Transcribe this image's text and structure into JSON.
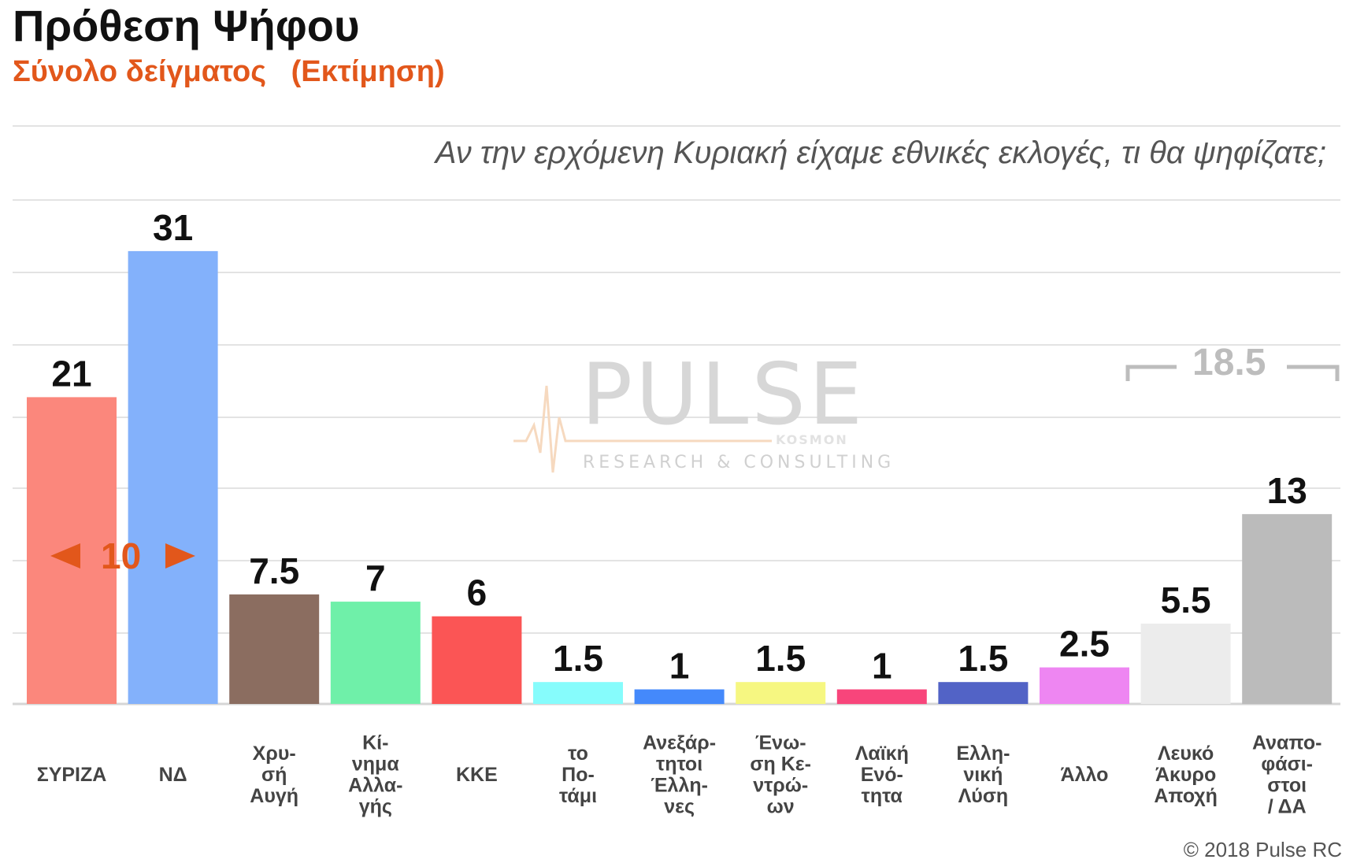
{
  "title": "Πρόθεση Ψήφου",
  "subtitle": "Σύνολο δείγματος   (Εκτίμηση)",
  "question": "Αν την ερχόμενη Κυριακή είχαμε εθνικές εκλογές, τι θα ψηφίζατε;",
  "copyright": "© 2018 Pulse RC",
  "watermark": {
    "brand": "PULSE",
    "tagline": "RESEARCH & CONSULTING",
    "partner": "KOSMON"
  },
  "annotations": {
    "gap_value": "10",
    "bracket_value": "18.5"
  },
  "colors": {
    "accent": "#e2571b",
    "grid": "#e3e3e3",
    "bracket": "#bdbdbd"
  },
  "chart_data": {
    "type": "bar",
    "title": "Πρόθεση Ψήφου",
    "subtitle": "Σύνολο δείγματος   (Εκτίμηση)",
    "categories": [
      [
        "ΣΥΡΙΖΑ"
      ],
      [
        "ΝΔ"
      ],
      [
        "Χρυ-",
        "σή",
        "Αυγή"
      ],
      [
        "Κί-",
        "νημα",
        "Αλλα-",
        "γής"
      ],
      [
        "ΚΚΕ"
      ],
      [
        "το",
        "Πο-",
        "τάμι"
      ],
      [
        "Ανεξάρ-",
        "τητοι",
        "Έλλη-",
        "νες"
      ],
      [
        "Ένω-",
        "ση Κε-",
        "ντρώ-",
        "ων"
      ],
      [
        "Λαϊκή",
        "Ενό-",
        "τητα"
      ],
      [
        "Ελλη-",
        "νική",
        "Λύση"
      ],
      [
        "Άλλο"
      ],
      [
        "Λευκό",
        "Άκυρο",
        "Αποχή"
      ],
      [
        "Αναπο-",
        "φάσι-",
        "στοι",
        "/ ΔΑ"
      ]
    ],
    "values": [
      21,
      31,
      7.5,
      7,
      6,
      1.5,
      1,
      1.5,
      1,
      1.5,
      2.5,
      5.5,
      13
    ],
    "value_labels": [
      "21",
      "31",
      "7.5",
      "7",
      "6",
      "1.5",
      "1",
      "1.5",
      "1",
      "1.5",
      "2.5",
      "5.5",
      "13"
    ],
    "colors": [
      "#fb877c",
      "#83b1fb",
      "#8b6d60",
      "#6ff0a9",
      "#fb5555",
      "#86fcfc",
      "#4489fb",
      "#f6f781",
      "#f8457b",
      "#5263c6",
      "#ee86f2",
      "#ececec",
      "#bbbbbb"
    ],
    "ylim": [
      0,
      35
    ],
    "grid": true
  }
}
